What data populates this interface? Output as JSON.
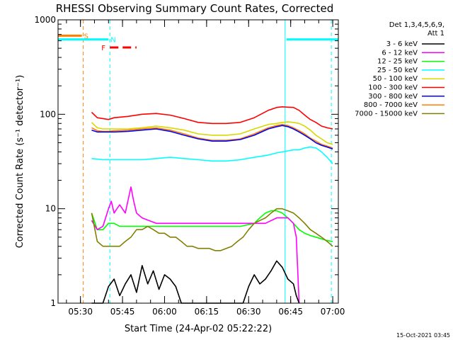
{
  "chart_data": {
    "type": "line",
    "title": "RHESSI Observing Summary Count Rates, Corrected",
    "xlabel": "Start Time (24-Apr-02 05:22:22)",
    "ylabel": "Corrected Count Rate (s⁻¹ detector⁻¹)",
    "x_range_minutes_after_0522": [
      0,
      100
    ],
    "y_scale": "log",
    "ylim": [
      1,
      1000
    ],
    "x_ticks": [
      {
        "label": "05:30",
        "t": 8
      },
      {
        "label": "05:45",
        "t": 23
      },
      {
        "label": "06:00",
        "t": 38
      },
      {
        "label": "06:15",
        "t": 53
      },
      {
        "label": "06:30",
        "t": 68
      },
      {
        "label": "06:45",
        "t": 83
      },
      {
        "label": "07:00",
        "t": 98
      }
    ],
    "y_ticks": [
      {
        "label": "1",
        "v": 1
      },
      {
        "label": "10",
        "v": 10
      },
      {
        "label": "100",
        "v": 100
      },
      {
        "label": "1000",
        "v": 1000
      }
    ],
    "legend": {
      "placement": "right",
      "header": [
        "Det 1,3,4,5,6,9,",
        "Att 1"
      ],
      "entries": [
        {
          "label": "3 - 6 keV",
          "color": "#000000"
        },
        {
          "label": "6 - 12 keV",
          "color": "#ff00ff"
        },
        {
          "label": "12 - 25 keV",
          "color": "#00ff00"
        },
        {
          "label": "25 - 50 keV",
          "color": "#00ffff"
        },
        {
          "label": "50 - 100 keV",
          "color": "#d8d800"
        },
        {
          "label": "100 - 300 keV",
          "color": "#ff0000"
        },
        {
          "label": "300 - 800 keV",
          "color": "#0000ff"
        },
        {
          "label": "800 - 7000 keV",
          "color": "#ff8000"
        },
        {
          "label": "7000 - 15000 keV",
          "color": "#808000"
        }
      ]
    },
    "flags": [
      {
        "label": "S",
        "color": "#ff8000",
        "t_start": 0,
        "t_end": 8.5,
        "y_level": 680
      },
      {
        "label": "N",
        "color": "#00ffff",
        "t_start": 0,
        "t_end": 18,
        "y_level": 620,
        "t_start2": 81.5,
        "t_end2": 100
      },
      {
        "label": "F",
        "color": "#ff0000",
        "t_start": 18.5,
        "t_end": 28,
        "y_level": 510,
        "dashed": true
      }
    ],
    "vlines": [
      {
        "t": 9,
        "color": "#ff8000",
        "dashed": true
      },
      {
        "t": 18.5,
        "color": "#00ffff",
        "dashed": true
      },
      {
        "t": 81,
        "color": "#00ffff",
        "dashed": false
      },
      {
        "t": 97.5,
        "color": "#00ffff",
        "dashed": true
      }
    ],
    "series": [
      {
        "name": "100 - 300 keV",
        "color": "#ff0000",
        "t": [
          12,
          14,
          16,
          18,
          20,
          25,
          30,
          35,
          40,
          45,
          50,
          55,
          60,
          65,
          70,
          75,
          78,
          80,
          82,
          84,
          86,
          88,
          90,
          92,
          94,
          96,
          98
        ],
        "y": [
          105,
          92,
          90,
          88,
          92,
          95,
          100,
          102,
          98,
          90,
          82,
          80,
          80,
          82,
          92,
          110,
          118,
          120,
          119,
          118,
          110,
          98,
          88,
          82,
          75,
          72,
          70
        ]
      },
      {
        "name": "50 - 100 keV",
        "color": "#d8d800",
        "t": [
          12,
          14,
          16,
          18,
          20,
          25,
          30,
          35,
          40,
          45,
          50,
          55,
          60,
          65,
          70,
          75,
          78,
          80,
          82,
          84,
          86,
          88,
          90,
          92,
          94,
          96,
          98
        ],
        "y": [
          82,
          72,
          70,
          70,
          70,
          70,
          72,
          75,
          72,
          68,
          62,
          60,
          60,
          62,
          70,
          78,
          80,
          82,
          83,
          82,
          80,
          75,
          68,
          60,
          55,
          50,
          48
        ]
      },
      {
        "name": "800 - 7000 keV",
        "color": "#ff8000",
        "t": [
          12,
          14,
          16,
          18,
          20,
          25,
          30,
          35,
          40,
          45,
          50,
          55,
          60,
          65,
          70,
          75,
          78,
          80,
          82,
          84,
          86,
          88,
          90,
          92,
          94,
          96,
          98
        ],
        "y": [
          72,
          67,
          66,
          66,
          67,
          68,
          70,
          72,
          68,
          62,
          56,
          53,
          53,
          55,
          62,
          72,
          76,
          78,
          76,
          72,
          67,
          62,
          56,
          52,
          48,
          46,
          44
        ]
      },
      {
        "name": "300 - 800 keV",
        "color": "#0000ff",
        "t": [
          12,
          14,
          16,
          18,
          20,
          25,
          30,
          35,
          40,
          45,
          50,
          55,
          60,
          65,
          70,
          75,
          78,
          80,
          82,
          84,
          86,
          88,
          90,
          92,
          94,
          96,
          98
        ],
        "y": [
          68,
          65,
          65,
          65,
          65,
          66,
          68,
          70,
          66,
          60,
          55,
          52,
          52,
          54,
          60,
          70,
          74,
          76,
          74,
          70,
          65,
          60,
          55,
          50,
          47,
          45,
          43
        ]
      },
      {
        "name": "25 - 50 keV",
        "color": "#00ffff",
        "t": [
          12,
          16,
          20,
          25,
          30,
          35,
          40,
          45,
          50,
          55,
          60,
          65,
          70,
          75,
          78,
          80,
          82,
          84,
          86,
          88,
          90,
          92,
          94,
          96,
          98
        ],
        "y": [
          34,
          33,
          33,
          33,
          33,
          34,
          35,
          34,
          33,
          32,
          32,
          33,
          35,
          37,
          39,
          40,
          41,
          42,
          42,
          44,
          45,
          44,
          40,
          35,
          30
        ]
      },
      {
        "name": "12 - 25 keV",
        "color": "#00ff00",
        "t": [
          12,
          14,
          16,
          18,
          20,
          22,
          25,
          28,
          30,
          35,
          40,
          45,
          50,
          55,
          60,
          65,
          70,
          72,
          74,
          76,
          78,
          80,
          82,
          84,
          86,
          88,
          90,
          92,
          94,
          96,
          98
        ],
        "y": [
          9,
          6,
          6,
          7,
          7,
          6.5,
          6.5,
          6.5,
          6.5,
          6.5,
          6.5,
          6.5,
          6.5,
          6.5,
          6.5,
          6.5,
          7,
          8,
          9,
          9.5,
          9.5,
          9,
          8,
          7,
          6,
          5.5,
          5.2,
          5,
          4.8,
          4.6,
          4.5
        ]
      },
      {
        "name": "6 - 12 keV",
        "color": "#ff00ff",
        "t": [
          12,
          14,
          16,
          18,
          19,
          20,
          21,
          22,
          24,
          26,
          27,
          28,
          30,
          35,
          40,
          45,
          50,
          55,
          60,
          65,
          70,
          74,
          78,
          80,
          82,
          84,
          85,
          86
        ],
        "y": [
          7.5,
          6,
          6.5,
          10,
          12,
          9,
          10,
          11,
          9,
          17,
          12,
          9,
          8,
          7,
          7,
          7,
          7,
          7,
          7,
          7,
          7,
          7,
          8,
          8,
          8,
          7,
          5,
          1
        ]
      },
      {
        "name": "7000 - 15000 keV",
        "color": "#808000",
        "t": [
          12,
          14,
          16,
          18,
          20,
          22,
          24,
          26,
          28,
          30,
          32,
          34,
          36,
          38,
          40,
          42,
          44,
          46,
          48,
          50,
          52,
          54,
          56,
          58,
          60,
          62,
          64,
          66,
          68,
          70,
          72,
          74,
          76,
          78,
          80,
          82,
          84,
          86,
          88,
          90,
          92,
          94,
          96,
          98
        ],
        "y": [
          9,
          4.5,
          4,
          4,
          4,
          4,
          4.5,
          5,
          6,
          6,
          6.5,
          6,
          5.5,
          5.5,
          5,
          5,
          4.5,
          4,
          4,
          3.8,
          3.8,
          3.8,
          3.6,
          3.6,
          3.8,
          4,
          4.5,
          5,
          6,
          7,
          7.5,
          8,
          9,
          10,
          10,
          9.5,
          9,
          8,
          7,
          6,
          5.5,
          5,
          4.5,
          4
        ]
      },
      {
        "name": "3 - 6 keV",
        "color": "#000000",
        "t": [
          12,
          16,
          18,
          20,
          22,
          24,
          26,
          28,
          30,
          32,
          34,
          36,
          38,
          40,
          42,
          44,
          46,
          48,
          50,
          52,
          54,
          56,
          58,
          60,
          62,
          64,
          66,
          68,
          70,
          72,
          74,
          76,
          78,
          80,
          82,
          84,
          85,
          86
        ],
        "y": [
          1,
          1,
          1.5,
          1.8,
          1.2,
          1.6,
          2,
          1.3,
          2.5,
          1.6,
          2.2,
          1.4,
          2,
          1.8,
          1.5,
          1,
          1,
          1,
          1,
          1,
          1,
          1,
          1,
          1,
          1,
          1,
          1,
          1.5,
          2,
          1.6,
          1.8,
          2.2,
          2.8,
          2.4,
          1.8,
          1.6,
          1.2,
          1
        ]
      }
    ],
    "footer_date": "15-Oct-2021 03:45"
  }
}
